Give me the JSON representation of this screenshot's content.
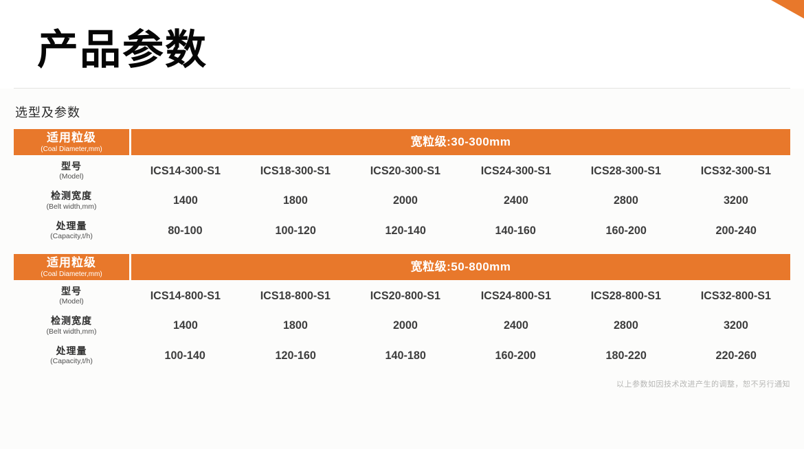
{
  "page": {
    "title": "产品参数",
    "section_title": "选型及参数",
    "footnote": "以上参数如因技术改进产生的调整，恕不另行通知"
  },
  "colors": {
    "accent_orange": "#E8782B",
    "row_gray": "#D9D9D6",
    "row_light": "#F2F2F0",
    "header_text": "#FFFFFF",
    "value_text": "#3D3D3D"
  },
  "tables": [
    {
      "corner": {
        "label": "适用粒级",
        "sub": "(Coal Diameter,mm)"
      },
      "band_title": "宽粒级:30-300mm",
      "rows": [
        {
          "label": "型号",
          "sub": "(Model)",
          "values": [
            "ICS14-300-S1",
            "ICS18-300-S1",
            "ICS20-300-S1",
            "ICS24-300-S1",
            "ICS28-300-S1",
            "ICS32-300-S1"
          ]
        },
        {
          "label": "检测宽度",
          "sub": "(Belt width,mm)",
          "values": [
            "1400",
            "1800",
            "2000",
            "2400",
            "2800",
            "3200"
          ]
        },
        {
          "label": "处理量",
          "sub": "(Capacity,t/h)",
          "values": [
            "80-100",
            "100-120",
            "120-140",
            "140-160",
            "160-200",
            "200-240"
          ]
        }
      ]
    },
    {
      "corner": {
        "label": "适用粒级",
        "sub": "(Coal Diameter,mm)"
      },
      "band_title": "宽粒级:50-800mm",
      "rows": [
        {
          "label": "型号",
          "sub": "(Model)",
          "values": [
            "ICS14-800-S1",
            "ICS18-800-S1",
            "ICS20-800-S1",
            "ICS24-800-S1",
            "ICS28-800-S1",
            "ICS32-800-S1"
          ]
        },
        {
          "label": "检测宽度",
          "sub": "(Belt width,mm)",
          "values": [
            "1400",
            "1800",
            "2000",
            "2400",
            "2800",
            "3200"
          ]
        },
        {
          "label": "处理量",
          "sub": "(Capacity,t/h)",
          "values": [
            "100-140",
            "120-160",
            "140-180",
            "160-200",
            "180-220",
            "220-260"
          ]
        }
      ]
    }
  ]
}
